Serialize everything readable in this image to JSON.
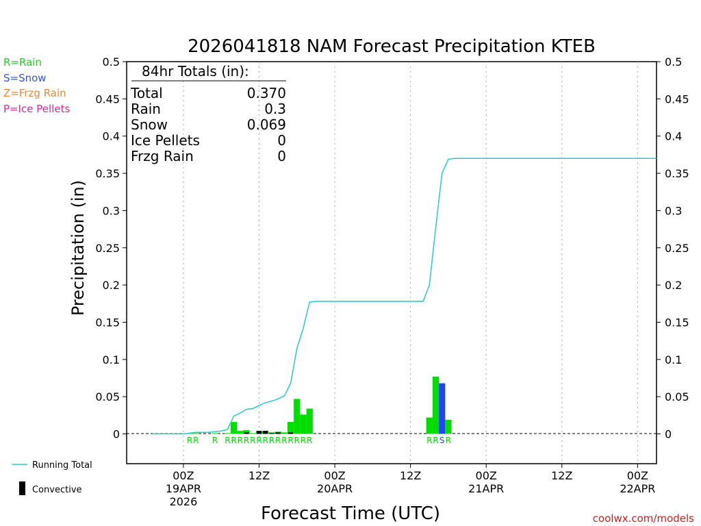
{
  "chart_data": {
    "type": "bar+line",
    "title": "2026041818 NAM Forecast Precipitation KTEB",
    "ylabel": "Precipitation (in)",
    "xlabel": "Forecast Time (UTC)",
    "ylim": [
      -0.04,
      0.5
    ],
    "yticks": [
      0,
      0.05,
      0.1,
      0.15,
      0.2,
      0.25,
      0.3,
      0.35,
      0.4,
      0.45,
      0.5
    ],
    "ytick_labels": [
      "0",
      "0.05",
      "0.1",
      "0.15",
      "0.2",
      "0.25",
      "0.3",
      "0.35",
      "0.4",
      "0.45",
      "0.5"
    ],
    "xlim_hours": [
      -9,
      75
    ],
    "xticks": [
      {
        "hour": 0,
        "label": "00Z",
        "date": "19APR",
        "year": "2026"
      },
      {
        "hour": 12,
        "label": "12Z",
        "date": "",
        "year": ""
      },
      {
        "hour": 24,
        "label": "00Z",
        "date": "20APR",
        "year": ""
      },
      {
        "hour": 36,
        "label": "12Z",
        "date": "",
        "year": ""
      },
      {
        "hour": 48,
        "label": "00Z",
        "date": "21APR",
        "year": ""
      },
      {
        "hour": 60,
        "label": "12Z",
        "date": "",
        "year": ""
      },
      {
        "hour": 72,
        "label": "00Z",
        "date": "22APR",
        "year": ""
      }
    ],
    "bars": [
      {
        "hour": 1,
        "type": "R",
        "value": 0.001
      },
      {
        "hour": 2,
        "type": "R",
        "value": 0.001
      },
      {
        "hour": 5,
        "type": "R",
        "value": 0.001
      },
      {
        "hour": 7,
        "type": "R",
        "value": 0.001
      },
      {
        "hour": 8,
        "type": "R",
        "value": 0.016
      },
      {
        "hour": 9,
        "type": "R",
        "value": 0.004
      },
      {
        "hour": 10,
        "type": "R",
        "value": 0.005
      },
      {
        "hour": 11,
        "type": "R",
        "value": 0.001
      },
      {
        "hour": 12,
        "type": "R",
        "value": 0.004
      },
      {
        "hour": 13,
        "type": "R",
        "value": 0.004
      },
      {
        "hour": 14,
        "type": "R",
        "value": 0.002
      },
      {
        "hour": 15,
        "type": "R",
        "value": 0.003
      },
      {
        "hour": 16,
        "type": "R",
        "value": 0.002
      },
      {
        "hour": 17,
        "type": "R",
        "value": 0.016
      },
      {
        "hour": 18,
        "type": "R",
        "value": 0.047
      },
      {
        "hour": 19,
        "type": "R",
        "value": 0.026
      },
      {
        "hour": 20,
        "type": "R",
        "value": 0.034
      },
      {
        "hour": 39,
        "type": "R",
        "value": 0.022
      },
      {
        "hour": 40,
        "type": "R",
        "value": 0.077
      },
      {
        "hour": 41,
        "type": "S",
        "value": 0.068
      },
      {
        "hour": 42,
        "type": "R",
        "value": 0.019
      }
    ],
    "convective": [
      {
        "hour": 10,
        "value": 0.002
      },
      {
        "hour": 12,
        "value": 0.004
      },
      {
        "hour": 13,
        "value": 0.004
      },
      {
        "hour": 14,
        "value": 0.001
      },
      {
        "hour": 15,
        "value": 0.002
      },
      {
        "hour": 17,
        "value": 0.002
      }
    ],
    "ptype_labels": [
      {
        "hour": 1,
        "code": "R"
      },
      {
        "hour": 2,
        "code": "R"
      },
      {
        "hour": 5,
        "code": "R"
      },
      {
        "hour": 7,
        "code": "R"
      },
      {
        "hour": 8,
        "code": "R"
      },
      {
        "hour": 9,
        "code": "R"
      },
      {
        "hour": 10,
        "code": "R"
      },
      {
        "hour": 11,
        "code": "R"
      },
      {
        "hour": 12,
        "code": "R"
      },
      {
        "hour": 13,
        "code": "R"
      },
      {
        "hour": 14,
        "code": "R"
      },
      {
        "hour": 15,
        "code": "R"
      },
      {
        "hour": 16,
        "code": "R"
      },
      {
        "hour": 17,
        "code": "R"
      },
      {
        "hour": 18,
        "code": "R"
      },
      {
        "hour": 19,
        "code": "R"
      },
      {
        "hour": 20,
        "code": "R"
      },
      {
        "hour": 39,
        "code": "R"
      },
      {
        "hour": 40,
        "code": "R"
      },
      {
        "hour": 41,
        "code": "S"
      },
      {
        "hour": 42,
        "code": "R"
      }
    ],
    "running_total": {
      "hours": [
        -5,
        0,
        1,
        2,
        3,
        4,
        5,
        6,
        7,
        8,
        9,
        10,
        11,
        12,
        13,
        14,
        15,
        16,
        17,
        18,
        19,
        20,
        21,
        38,
        39,
        40,
        41,
        42,
        43,
        75
      ],
      "values": [
        0,
        0,
        0.001,
        0.002,
        0.002,
        0.002,
        0.003,
        0.004,
        0.006,
        0.024,
        0.028,
        0.033,
        0.034,
        0.038,
        0.042,
        0.044,
        0.047,
        0.051,
        0.068,
        0.115,
        0.142,
        0.177,
        0.178,
        0.178,
        0.2,
        0.277,
        0.35,
        0.369,
        0.37,
        0.37
      ]
    },
    "totals_box": {
      "heading": "84hr Totals (in):",
      "rows": [
        {
          "label": "Total",
          "value": "0.370"
        },
        {
          "label": "Rain",
          "value": "0.3"
        },
        {
          "label": "Snow",
          "value": "0.069"
        },
        {
          "label": "Ice Pellets",
          "value": "0"
        },
        {
          "label": "Frzg Rain",
          "value": "0"
        }
      ]
    },
    "ptype_legend": [
      {
        "text": "R=Rain",
        "color": "#22cc22"
      },
      {
        "text": "S=Snow",
        "color": "#3355ee"
      },
      {
        "text": "Z=Frzg Rain",
        "color": "#ee8833"
      },
      {
        "text": "P=Ice Pellets",
        "color": "#ee2299"
      }
    ],
    "series_legend": [
      {
        "text": "Running Total",
        "color": "#22cccc",
        "kind": "line"
      },
      {
        "text": "Convective",
        "color": "#000000",
        "kind": "bar"
      }
    ],
    "colors": {
      "rain": "#00dd00",
      "snow": "#2244ff",
      "frzg": "#ee8833",
      "pellets": "#ee2299",
      "running_total": "#22cccc",
      "convective": "#000000"
    },
    "credit": "coolwx.com/models"
  }
}
